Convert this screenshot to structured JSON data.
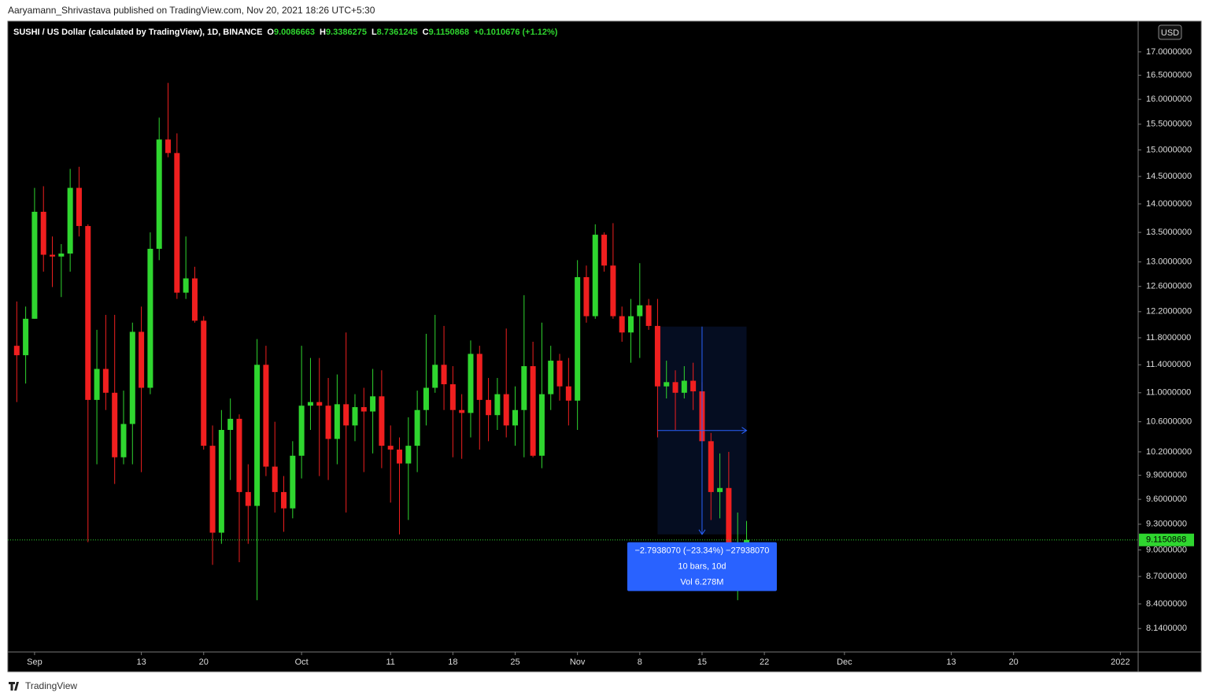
{
  "header": "Aaryamann_Shrivastava published on TradingView.com, Nov 20, 2021 18:26 UTC+5:30",
  "brand": "TradingView",
  "chart_data": {
    "type": "candlestick",
    "title": "SUSHI / US Dollar (calculated by TradingView), 1D, BINANCE",
    "ohlc_labels": [
      "O",
      "H",
      "L",
      "C"
    ],
    "change": "+0.1010676 (+1.12%)",
    "currency": "USD",
    "up_color": "#2fd62f",
    "down_color": "#f01f1f",
    "log": true,
    "grid": false,
    "price_line": true,
    "x": [
      "2021-08-30",
      "2021-08-31",
      "2021-09-01",
      "2021-09-02",
      "2021-09-03",
      "2021-09-04",
      "2021-09-05",
      "2021-09-06",
      "2021-09-07",
      "2021-09-08",
      "2021-09-09",
      "2021-09-10",
      "2021-09-11",
      "2021-09-12",
      "2021-09-13",
      "2021-09-14",
      "2021-09-15",
      "2021-09-16",
      "2021-09-17",
      "2021-09-18",
      "2021-09-19",
      "2021-09-20",
      "2021-09-21",
      "2021-09-22",
      "2021-09-23",
      "2021-09-24",
      "2021-09-25",
      "2021-09-26",
      "2021-09-27",
      "2021-09-28",
      "2021-09-29",
      "2021-09-30",
      "2021-10-01",
      "2021-10-02",
      "2021-10-03",
      "2021-10-04",
      "2021-10-05",
      "2021-10-06",
      "2021-10-07",
      "2021-10-08",
      "2021-10-09",
      "2021-10-10",
      "2021-10-11",
      "2021-10-12",
      "2021-10-13",
      "2021-10-14",
      "2021-10-15",
      "2021-10-16",
      "2021-10-17",
      "2021-10-18",
      "2021-10-19",
      "2021-10-20",
      "2021-10-21",
      "2021-10-22",
      "2021-10-23",
      "2021-10-24",
      "2021-10-25",
      "2021-10-26",
      "2021-10-27",
      "2021-10-28",
      "2021-10-29",
      "2021-10-30",
      "2021-10-31",
      "2021-11-01",
      "2021-11-02",
      "2021-11-03",
      "2021-11-04",
      "2021-11-05",
      "2021-11-06",
      "2021-11-07",
      "2021-11-08",
      "2021-11-09",
      "2021-11-10",
      "2021-11-11",
      "2021-11-12",
      "2021-11-13",
      "2021-11-14",
      "2021-11-15",
      "2021-11-16",
      "2021-11-17",
      "2021-11-18",
      "2021-11-19",
      "2021-11-20"
    ],
    "open": [
      11.68,
      11.54,
      12.09,
      13.86,
      13.12,
      13.09,
      13.14,
      14.29,
      13.61,
      10.9,
      11.34,
      11.0,
      10.13,
      10.57,
      11.89,
      11.07,
      13.22,
      15.2,
      14.94,
      12.5,
      12.73,
      12.06,
      10.28,
      9.2,
      10.49,
      10.64,
      9.69,
      9.52,
      11.4,
      10.01,
      9.69,
      9.49,
      10.15,
      10.82,
      10.87,
      10.82,
      10.37,
      10.84,
      10.55,
      10.8,
      10.74,
      10.95,
      10.28,
      10.23,
      10.05,
      10.28,
      10.76,
      11.07,
      11.4,
      11.12,
      10.76,
      10.72,
      11.56,
      10.9,
      10.69,
      10.98,
      10.55,
      10.76,
      11.38,
      10.15,
      10.98,
      11.46,
      11.09,
      10.89,
      12.75,
      12.13,
      13.46,
      12.94,
      12.13,
      11.88,
      12.13,
      12.3,
      11.98,
      11.09,
      11.15,
      11.0,
      11.17,
      11.02,
      10.34,
      9.69,
      9.74,
      8.95,
      9.0086663
    ],
    "high": [
      12.36,
      12.28,
      14.29,
      14.32,
      13.43,
      13.3,
      14.64,
      14.68,
      13.64,
      11.92,
      12.15,
      12.15,
      11.03,
      12.03,
      12.28,
      13.5,
      15.63,
      16.34,
      15.32,
      13.43,
      12.92,
      12.13,
      10.55,
      10.76,
      10.92,
      10.7,
      10.04,
      11.78,
      11.68,
      10.6,
      9.89,
      10.34,
      11.68,
      11.5,
      11.5,
      11.21,
      11.26,
      11.88,
      10.98,
      11.07,
      11.34,
      11.32,
      10.55,
      10.39,
      10.66,
      11.03,
      11.86,
      12.15,
      11.98,
      11.38,
      10.98,
      11.76,
      11.68,
      11.21,
      11.21,
      11.94,
      11.09,
      12.46,
      11.74,
      12.03,
      11.68,
      11.56,
      11.5,
      13.03,
      12.94,
      13.64,
      13.5,
      13.66,
      12.28,
      12.4,
      12.98,
      12.4,
      12.4,
      11.46,
      11.32,
      11.38,
      11.43,
      11.15,
      10.45,
      10.18,
      10.2,
      9.44,
      9.3386275
    ],
    "low": [
      10.87,
      11.13,
      12.09,
      12.84,
      12.59,
      12.43,
      12.84,
      13.43,
      9.09,
      10.04,
      10.76,
      9.79,
      10.04,
      10.04,
      9.94,
      10.98,
      13.03,
      14.86,
      12.4,
      12.4,
      12.03,
      10.23,
      8.83,
      9.07,
      9.84,
      8.86,
      9.07,
      8.44,
      9.89,
      9.44,
      9.21,
      9.37,
      9.86,
      10.49,
      9.89,
      9.84,
      10.04,
      9.44,
      10.34,
      9.94,
      10.18,
      9.99,
      9.56,
      9.18,
      9.35,
      9.94,
      10.55,
      11.0,
      10.76,
      10.13,
      10.11,
      10.39,
      10.23,
      10.34,
      10.49,
      10.39,
      10.28,
      10.13,
      10.13,
      9.99,
      10.76,
      10.89,
      10.55,
      10.49,
      12.03,
      12.09,
      12.84,
      12.09,
      11.74,
      11.43,
      11.5,
      11.92,
      10.39,
      10.92,
      10.49,
      10.92,
      10.76,
      10.34,
      9.35,
      9.37,
      8.93,
      8.44,
      8.7361245
    ],
    "close": [
      11.54,
      12.09,
      13.86,
      13.12,
      13.09,
      13.14,
      14.29,
      13.61,
      10.9,
      11.34,
      11.0,
      10.13,
      10.57,
      11.89,
      11.07,
      13.22,
      15.2,
      14.94,
      12.5,
      12.73,
      12.06,
      10.28,
      9.2,
      10.49,
      10.64,
      9.69,
      9.52,
      11.4,
      10.01,
      9.69,
      9.49,
      10.15,
      10.82,
      10.87,
      10.82,
      10.37,
      10.84,
      10.55,
      10.8,
      10.74,
      10.95,
      10.28,
      10.23,
      10.05,
      10.28,
      10.76,
      11.07,
      11.4,
      11.12,
      10.76,
      10.72,
      11.56,
      10.9,
      10.69,
      10.98,
      10.55,
      10.76,
      11.38,
      10.15,
      10.98,
      11.46,
      11.09,
      10.89,
      12.75,
      12.13,
      13.46,
      12.94,
      12.13,
      11.88,
      12.13,
      12.3,
      11.98,
      11.09,
      11.15,
      11.0,
      11.17,
      11.02,
      10.34,
      9.69,
      9.74,
      8.95,
      9.01,
      9.1150868
    ],
    "xlim": [
      "2021-08-29",
      "2022-01-03"
    ],
    "xticks": [
      {
        "value": "2021-09-01",
        "label": "Sep"
      },
      {
        "value": "2021-09-13",
        "label": "13"
      },
      {
        "value": "2021-09-20",
        "label": "20"
      },
      {
        "value": "2021-10-01",
        "label": "Oct"
      },
      {
        "value": "2021-10-11",
        "label": "11"
      },
      {
        "value": "2021-10-18",
        "label": "18"
      },
      {
        "value": "2021-10-25",
        "label": "25"
      },
      {
        "value": "2021-11-01",
        "label": "Nov"
      },
      {
        "value": "2021-11-08",
        "label": "8"
      },
      {
        "value": "2021-11-15",
        "label": "15"
      },
      {
        "value": "2021-11-22",
        "label": "22"
      },
      {
        "value": "2021-12-01",
        "label": "Dec"
      },
      {
        "value": "2021-12-13",
        "label": "13"
      },
      {
        "value": "2021-12-20",
        "label": "20"
      },
      {
        "value": "2022-01-01",
        "label": "2022"
      }
    ],
    "ylim": [
      7.9,
      17.66
    ],
    "yticks": [
      {
        "value": 17,
        "label": "17.0000000"
      },
      {
        "value": 16.5,
        "label": "16.5000000"
      },
      {
        "value": 16,
        "label": "16.0000000"
      },
      {
        "value": 15.5,
        "label": "15.5000000"
      },
      {
        "value": 15,
        "label": "15.0000000"
      },
      {
        "value": 14.5,
        "label": "14.5000000"
      },
      {
        "value": 14,
        "label": "14.0000000"
      },
      {
        "value": 13.5,
        "label": "13.5000000"
      },
      {
        "value": 13,
        "label": "13.0000000"
      },
      {
        "value": 12.6,
        "label": "12.6000000"
      },
      {
        "value": 12.2,
        "label": "12.2000000"
      },
      {
        "value": 11.8,
        "label": "11.8000000"
      },
      {
        "value": 11.4,
        "label": "11.4000000"
      },
      {
        "value": 11,
        "label": "11.0000000"
      },
      {
        "value": 10.6,
        "label": "10.6000000"
      },
      {
        "value": 10.2,
        "label": "10.2000000"
      },
      {
        "value": 9.9,
        "label": "9.9000000"
      },
      {
        "value": 9.6,
        "label": "9.6000000"
      },
      {
        "value": 9.3,
        "label": "9.3000000"
      },
      {
        "value": 9,
        "label": "9.0000000"
      },
      {
        "value": 8.7,
        "label": "8.7000000"
      },
      {
        "value": 8.4,
        "label": "8.4000000"
      },
      {
        "value": 8.14,
        "label": "8.1400000"
      }
    ],
    "measure": {
      "x0": "2021-11-10",
      "x1": "2021-11-20",
      "top": 11.97,
      "bottom": 9.18,
      "color": "#2962ff",
      "lines": [
        "−2.7938070 (−23.34%) −27938070",
        "10 bars, 10d",
        "Vol 6.278M"
      ]
    }
  }
}
